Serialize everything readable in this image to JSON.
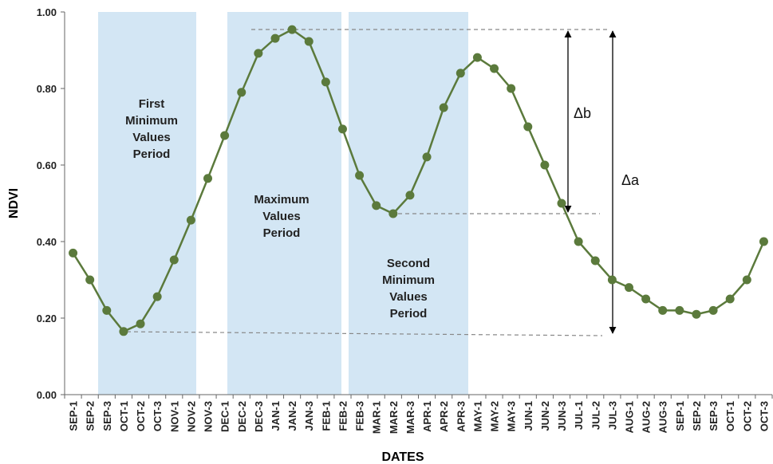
{
  "chart_data": {
    "type": "line",
    "x_label": "DATES",
    "y_label": "NDVI",
    "categories": [
      "SEP-1",
      "SEP-2",
      "SEP-3",
      "OCT-1",
      "OCT-2",
      "OCT-3",
      "NOV-1",
      "NOV-2",
      "NOV-3",
      "DEC-1",
      "DEC-2",
      "DEC-3",
      "JAN-1",
      "JAN-2",
      "JAN-3",
      "FEB-1",
      "FEB-2",
      "FEB-3",
      "MAR-1",
      "MAR-2",
      "MAR-3",
      "APR-1",
      "APR-2",
      "APR-3",
      "MAY-1",
      "MAY-2",
      "MAY-3",
      "JUN-1",
      "JUN-2",
      "JUN-3",
      "JUL-1",
      "JUL-2",
      "JUL-3",
      "AUG-1",
      "AUG-2",
      "AUG-3",
      "SEP-1",
      "SEP-2",
      "SEP-3",
      "OCT-1",
      "OCT-2",
      "OCT-3"
    ],
    "series": [
      {
        "color": "#5b7a3c",
        "values": [
          0.37,
          0.3,
          0.22,
          0.165,
          0.185,
          0.256,
          0.352,
          0.456,
          0.565,
          0.677,
          0.79,
          0.892,
          0.931,
          0.954,
          0.923,
          0.817,
          0.694,
          0.573,
          0.494,
          0.473,
          0.521,
          0.621,
          0.75,
          0.84,
          0.881,
          0.852,
          0.8,
          0.7,
          0.6,
          0.5,
          0.4,
          0.35,
          0.3,
          0.28,
          0.25,
          0.22,
          0.22,
          0.21,
          0.22,
          0.25,
          0.3,
          0.4
        ]
      }
    ],
    "ylim": [
      0,
      1
    ],
    "yticks": [
      {
        "value": 0,
        "label": "0.00"
      },
      {
        "value": 0.2,
        "label": "0.20"
      },
      {
        "value": 0.4,
        "label": "0.40"
      },
      {
        "value": 0.6,
        "label": "0.60"
      },
      {
        "value": 0.8,
        "label": "0.80"
      },
      {
        "value": 1,
        "label": "1.00"
      }
    ],
    "annotations": [
      {
        "lines": [
          "First",
          "Minimum",
          "Values",
          "Period"
        ]
      },
      {
        "lines": [
          "Maximum",
          "Values",
          "Period"
        ]
      },
      {
        "lines": [
          "Second",
          "Minimum",
          "Values",
          "Period"
        ]
      },
      {
        "lines": [
          "Δb"
        ]
      },
      {
        "lines": [
          "Δa"
        ]
      }
    ]
  }
}
